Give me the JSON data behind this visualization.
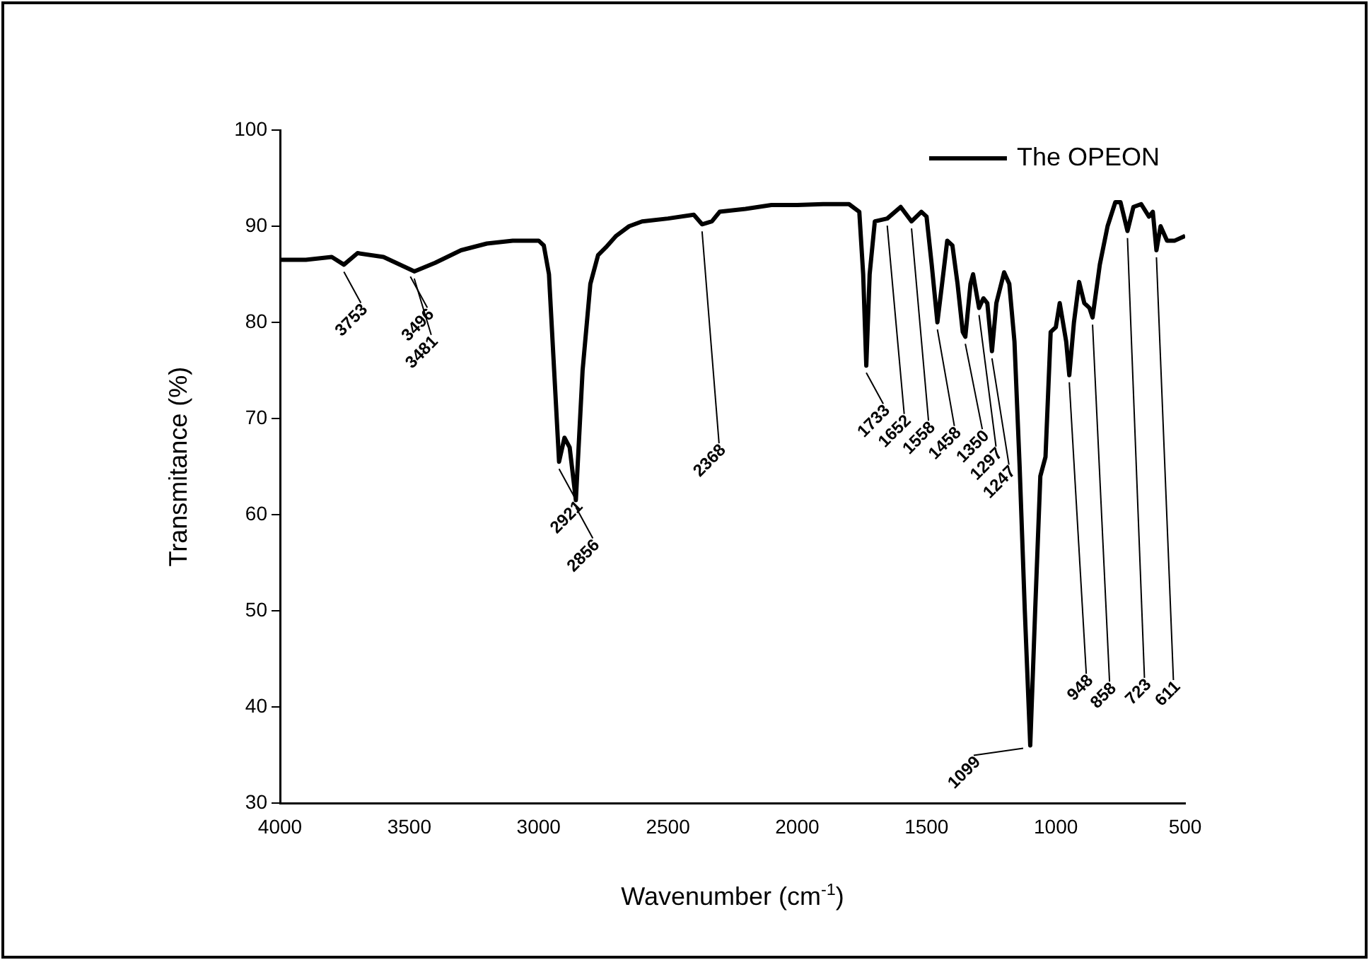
{
  "chart_data": {
    "type": "line",
    "xlabel": "Wavenumber (cm$^{-1}$)",
    "ylabel": "Transmitance (%)",
    "xlim": [
      4000,
      500
    ],
    "xticks": [
      4000,
      3500,
      3000,
      2500,
      2000,
      1500,
      1000,
      500
    ],
    "ylim": [
      30,
      100
    ],
    "yticks": [
      30,
      40,
      50,
      60,
      70,
      80,
      90,
      100
    ],
    "grid": false,
    "legend": "top right",
    "marker": "none",
    "line_style": "solid",
    "series": [
      {
        "name": "The OPEON",
        "color": "#000000",
        "x": [
          4000,
          3900,
          3800,
          3753,
          3700,
          3600,
          3496,
          3481,
          3400,
          3300,
          3200,
          3100,
          3000,
          2980,
          2960,
          2940,
          2921,
          2900,
          2880,
          2856,
          2830,
          2800,
          2770,
          2740,
          2700,
          2650,
          2600,
          2500,
          2400,
          2368,
          2330,
          2300,
          2200,
          2100,
          2000,
          1900,
          1800,
          1760,
          1745,
          1733,
          1720,
          1700,
          1652,
          1600,
          1558,
          1520,
          1500,
          1480,
          1458,
          1440,
          1420,
          1400,
          1380,
          1360,
          1350,
          1330,
          1320,
          1297,
          1280,
          1265,
          1247,
          1230,
          1200,
          1180,
          1160,
          1140,
          1120,
          1099,
          1080,
          1060,
          1040,
          1020,
          1000,
          985,
          960,
          948,
          930,
          910,
          890,
          870,
          858,
          830,
          800,
          770,
          750,
          723,
          700,
          670,
          640,
          625,
          611,
          595,
          570,
          540,
          500
        ],
        "values": [
          86.5,
          86.5,
          86.8,
          86.0,
          87.2,
          86.8,
          85.5,
          85.3,
          86.2,
          87.5,
          88.2,
          88.5,
          88.5,
          88,
          85,
          75,
          65.5,
          68,
          67,
          61.5,
          75,
          84,
          87,
          87.8,
          89,
          90,
          90.5,
          90.8,
          91.2,
          90.2,
          90.5,
          91.5,
          91.8,
          92.2,
          92.2,
          92.3,
          92.3,
          91.5,
          85,
          75.5,
          85,
          90.5,
          90.8,
          92,
          90.5,
          91.5,
          91,
          86,
          80,
          84,
          88.5,
          88,
          84,
          79,
          78.5,
          84,
          85,
          81.5,
          82.5,
          82,
          77,
          82,
          85.2,
          84,
          78,
          65,
          50,
          36,
          50,
          64,
          66,
          79,
          79.5,
          82,
          78,
          74.5,
          80,
          84.2,
          82,
          81.5,
          80.5,
          86,
          90,
          92.5,
          92.5,
          89.5,
          92,
          92.3,
          91,
          91.5,
          87.5,
          90,
          88.5,
          88.5,
          89
        ]
      }
    ],
    "annotations": [
      {
        "text": "3753",
        "x": 3753,
        "y": 86.0
      },
      {
        "text": "3496",
        "x": 3496,
        "y": 85.5
      },
      {
        "text": "3481",
        "x": 3481,
        "y": 85.3
      },
      {
        "text": "2921",
        "x": 2921,
        "y": 65.5
      },
      {
        "text": "2856",
        "x": 2856,
        "y": 61.5
      },
      {
        "text": "2368",
        "x": 2368,
        "y": 90.2
      },
      {
        "text": "1733",
        "x": 1733,
        "y": 75.5
      },
      {
        "text": "1652",
        "x": 1652,
        "y": 90.8
      },
      {
        "text": "1558",
        "x": 1558,
        "y": 90.5
      },
      {
        "text": "1458",
        "x": 1458,
        "y": 80
      },
      {
        "text": "1350",
        "x": 1350,
        "y": 78.5
      },
      {
        "text": "1297",
        "x": 1297,
        "y": 81.5
      },
      {
        "text": "1247",
        "x": 1247,
        "y": 77
      },
      {
        "text": "1099",
        "x": 1099,
        "y": 36
      },
      {
        "text": "948",
        "x": 948,
        "y": 74.5
      },
      {
        "text": "858",
        "x": 858,
        "y": 80.5
      },
      {
        "text": "723",
        "x": 723,
        "y": 89.5
      },
      {
        "text": "611",
        "x": 611,
        "y": 87.5
      }
    ]
  }
}
